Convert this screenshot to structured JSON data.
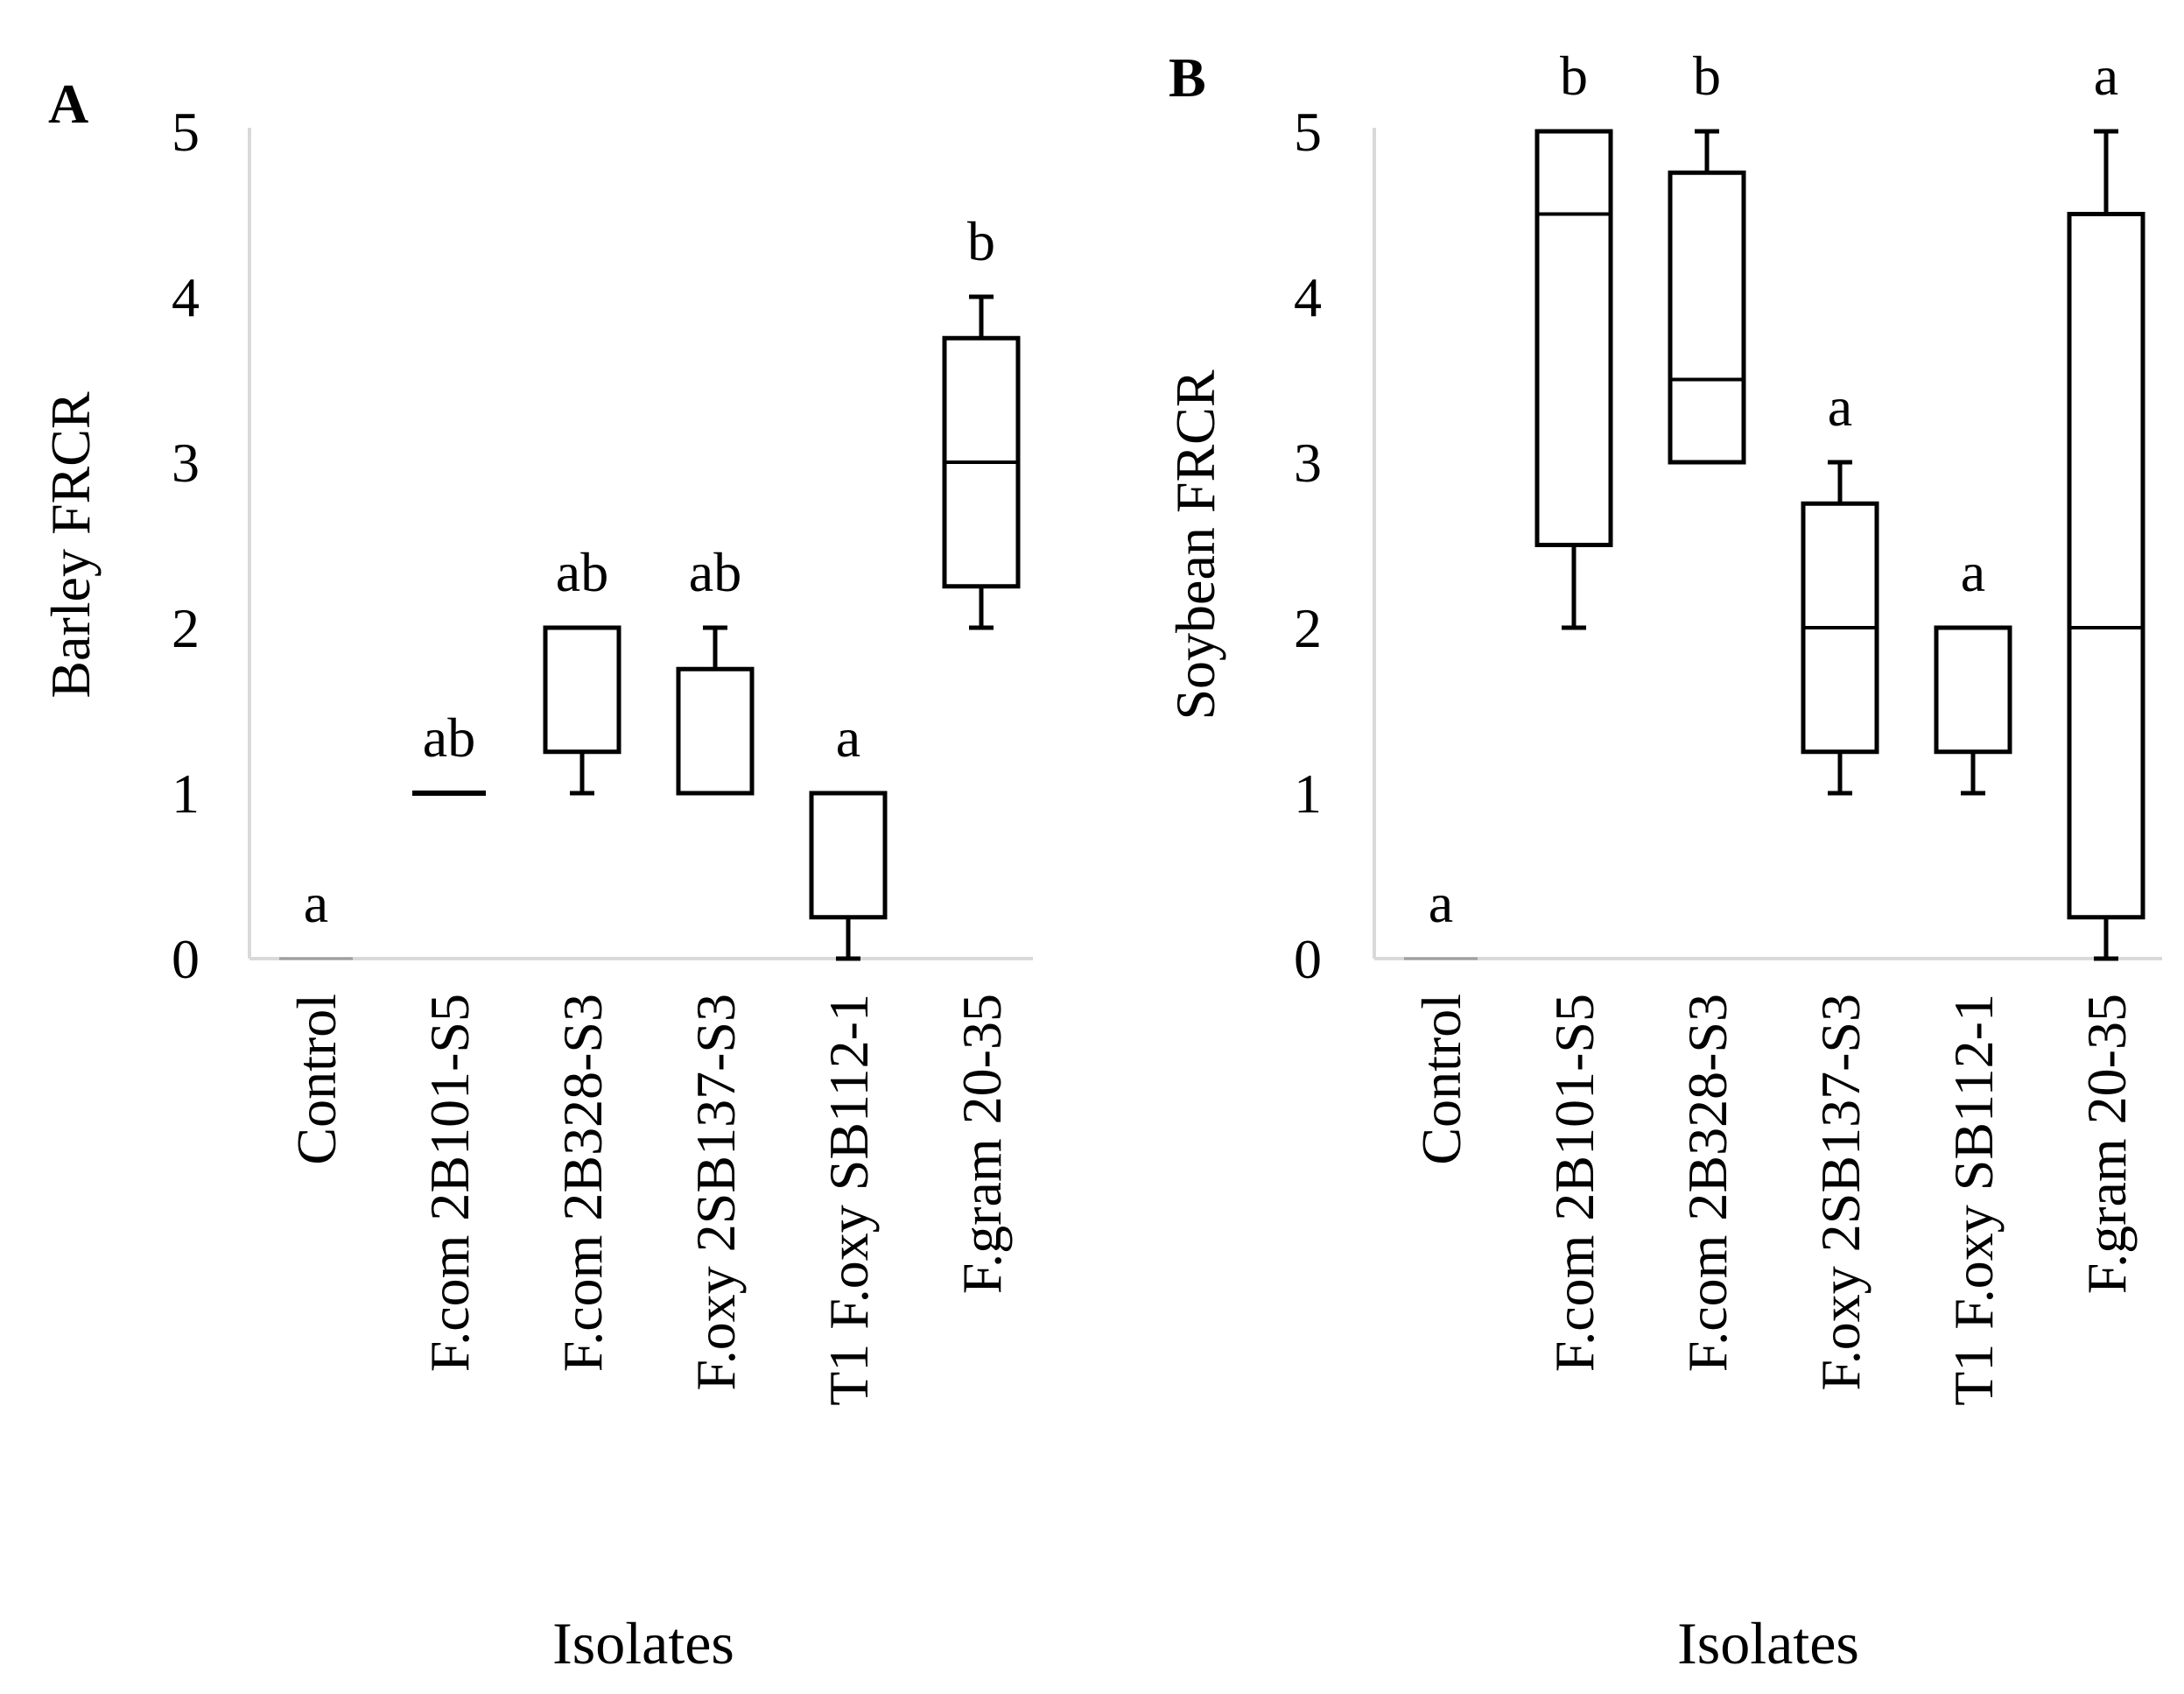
{
  "chart_data": [
    {
      "type": "box",
      "panel_label": "A",
      "ylabel": "Barley FRCR",
      "xlabel": "Isolates",
      "ylim": [
        0,
        5
      ],
      "yticks": [
        "0",
        "1",
        "2",
        "3",
        "4",
        "5"
      ],
      "categories": [
        "Control",
        "F.com 2B101-S5",
        "F.com 2B328-S3",
        "F.oxy 2SB137-S3",
        "T1 F.oxy SB112-1",
        "F.gram 20-35"
      ],
      "boxes": [
        {
          "min": 0,
          "q1": 0,
          "median": 0,
          "q3": 0,
          "max": 0
        },
        {
          "min": 1,
          "q1": 1,
          "median": 1,
          "q3": 1,
          "max": 1
        },
        {
          "min": 1,
          "q1": 1.25,
          "median": 2,
          "q3": 2,
          "max": 2
        },
        {
          "min": 1,
          "q1": 1,
          "median": 1,
          "q3": 1.75,
          "max": 2
        },
        {
          "min": 0,
          "q1": 0.25,
          "median": 1,
          "q3": 1,
          "max": 1
        },
        {
          "min": 2,
          "q1": 2.25,
          "median": 3,
          "q3": 3.75,
          "max": 4
        }
      ],
      "significance": [
        "a",
        "ab",
        "ab",
        "ab",
        "a",
        "b"
      ]
    },
    {
      "type": "box",
      "panel_label": "B",
      "ylabel": "Soybean FRCR",
      "xlabel": "Isolates",
      "ylim": [
        0,
        5
      ],
      "yticks": [
        "0",
        "1",
        "2",
        "3",
        "4",
        "5"
      ],
      "categories": [
        "Control",
        "F.com 2B101-S5",
        "F.com 2B328-S3",
        "F.oxy 2SB137-S3",
        "T1 F.oxy SB112-1",
        "F.gram 20-35"
      ],
      "boxes": [
        {
          "min": 0,
          "q1": 0,
          "median": 0,
          "q3": 0,
          "max": 0
        },
        {
          "min": 2,
          "q1": 2.5,
          "median": 4.5,
          "q3": 5,
          "max": 5
        },
        {
          "min": 3,
          "q1": 3,
          "median": 3.5,
          "q3": 4.75,
          "max": 5
        },
        {
          "min": 1,
          "q1": 1.25,
          "median": 2,
          "q3": 2.75,
          "max": 3
        },
        {
          "min": 1,
          "q1": 1.25,
          "median": 2,
          "q3": 2,
          "max": 2
        },
        {
          "min": 0,
          "q1": 0.25,
          "median": 2,
          "q3": 4.5,
          "max": 5
        }
      ],
      "significance": [
        "a",
        "b",
        "b",
        "a",
        "a",
        "a"
      ]
    }
  ]
}
